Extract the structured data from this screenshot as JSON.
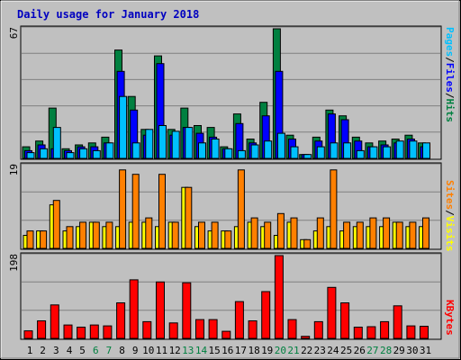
{
  "title": "Daily usage for January 2018",
  "colors": {
    "background": "#c0c0c0",
    "title": "#0000c0",
    "hits": "#008040",
    "files": "#0000ff",
    "pages": "#00c0ff",
    "visits": "#ffff00",
    "sites": "#ff8000",
    "kbytes": "#ff0000",
    "weekend_label": "#008040",
    "weekday_label": "#000000"
  },
  "chart_data": [
    {
      "type": "bar",
      "name": "hits-files-pages",
      "ymax_label": "67",
      "ylim": [
        0,
        67
      ],
      "right_label": [
        "Pages",
        "/",
        "Files",
        "/",
        "Hits"
      ],
      "series": [
        {
          "name": "Hits",
          "values": [
            6,
            9,
            26,
            5,
            7,
            8,
            11,
            56,
            32,
            15,
            53,
            15,
            26,
            17,
            16,
            6,
            23,
            10,
            29,
            67,
            12,
            2,
            11,
            25,
            22,
            11,
            8,
            9,
            10,
            12,
            8
          ]
        },
        {
          "name": "Files",
          "values": [
            4,
            7,
            5,
            4,
            6,
            6,
            8,
            45,
            25,
            12,
            49,
            12,
            16,
            13,
            11,
            5,
            18,
            8,
            22,
            45,
            10,
            2,
            9,
            23,
            20,
            9,
            6,
            7,
            8,
            10,
            6
          ]
        },
        {
          "name": "Pages",
          "values": [
            3,
            5,
            16,
            3,
            5,
            4,
            8,
            32,
            8,
            15,
            17,
            14,
            16,
            8,
            10,
            5,
            4,
            7,
            9,
            13,
            6,
            2,
            6,
            8,
            8,
            4,
            6,
            6,
            9,
            9,
            8
          ]
        }
      ],
      "weekend_days": [
        6,
        7,
        13,
        14,
        20,
        21,
        27,
        28
      ]
    },
    {
      "type": "bar",
      "name": "visits-sites",
      "ymax_label": "19",
      "ylim": [
        0,
        19
      ],
      "right_label": [
        "Sites",
        "/",
        "Visits"
      ],
      "series": [
        {
          "name": "Visits",
          "values": [
            3,
            4,
            10,
            4,
            5,
            6,
            5,
            5,
            6,
            6,
            5,
            6,
            14,
            5,
            4,
            4,
            5,
            6,
            5,
            3,
            6,
            2,
            4,
            5,
            4,
            5,
            5,
            5,
            6,
            5,
            5
          ]
        },
        {
          "name": "Sites",
          "values": [
            4,
            4,
            11,
            5,
            6,
            6,
            6,
            18,
            17,
            7,
            17,
            6,
            14,
            6,
            6,
            4,
            18,
            7,
            6,
            8,
            7,
            2,
            7,
            18,
            6,
            6,
            7,
            7,
            6,
            6,
            7
          ]
        }
      ]
    },
    {
      "type": "bar",
      "name": "kbytes",
      "ymax_label": "198",
      "ylim": [
        0,
        198
      ],
      "right_label": [
        "KBytes"
      ],
      "series": [
        {
          "name": "KBytes",
          "values": [
            18,
            42,
            80,
            32,
            27,
            32,
            30,
            85,
            140,
            40,
            135,
            37,
            133,
            45,
            45,
            17,
            88,
            42,
            112,
            198,
            45,
            5,
            40,
            122,
            85,
            27,
            28,
            40,
            78,
            30,
            29
          ]
        }
      ]
    }
  ]
}
